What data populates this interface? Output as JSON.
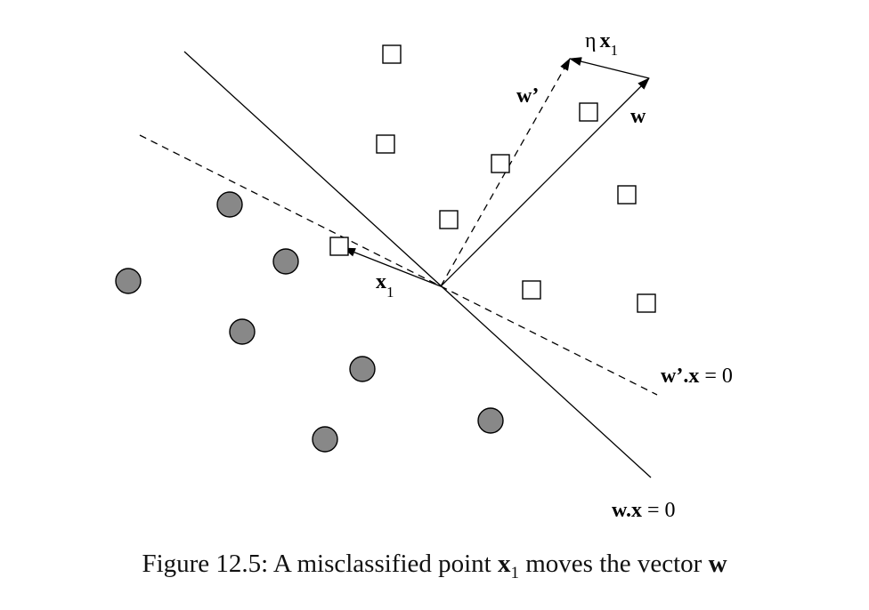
{
  "labels": {
    "eta": "η",
    "x1_bold": "x",
    "x1_sub": "1",
    "w_prime": "w’",
    "w": "w",
    "w_prime_eq_bold": "w’.x",
    "w_prime_eq_rest": " = 0",
    "w_eq_bold": "w.x",
    "w_eq_rest": " = 0"
  },
  "caption": {
    "prefix": "Figure 12.5: A misclassified point ",
    "x_bold": "x",
    "x_sub": "1",
    "middle": " moves the vector ",
    "w_bold": "w"
  },
  "colors": {
    "circle_fill": "#888888",
    "stroke": "#000000"
  }
}
